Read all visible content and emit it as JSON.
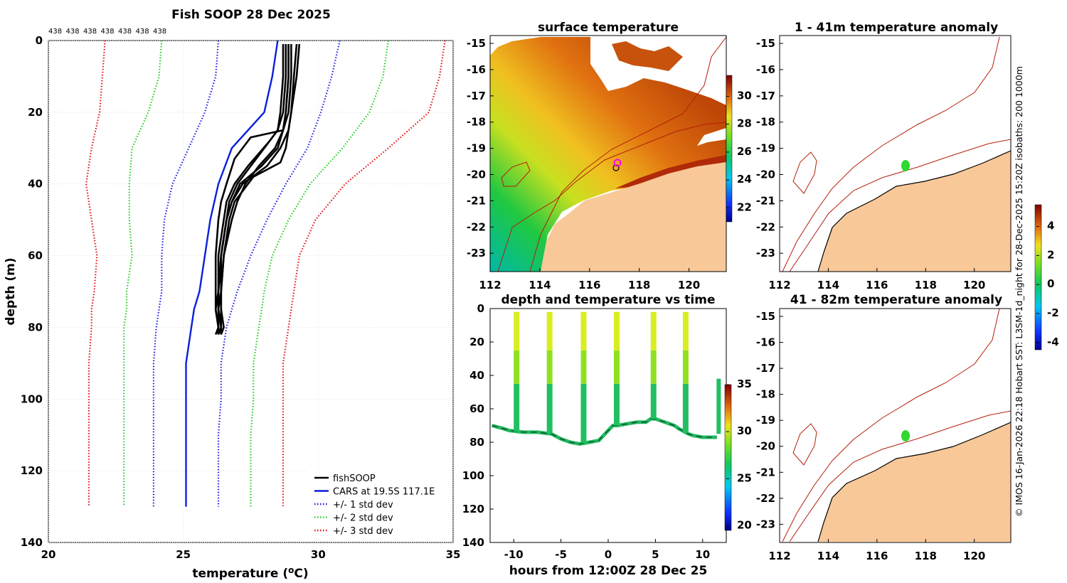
{
  "credit": "© IMOS 16-Jan-2026 22:18 Hobart SST: L3SM-1d_night for 28-Dec-2025 15:20Z isobaths: 200  1000m",
  "colors": {
    "fishSOOP": "#000000",
    "cars": "#0a1fdc",
    "std1": "#1a1ae6",
    "std2": "#22cc22",
    "std3": "#e01010",
    "land": "#f8c898",
    "isobath": "#b41e0a"
  },
  "chart_data": [
    {
      "id": "profile",
      "type": "line",
      "title": "Fish SOOP 28 Dec 2025",
      "xlabel": "temperature (°C)",
      "ylabel": "depth (m)",
      "xlim": [
        20,
        35
      ],
      "ylim": [
        140,
        0
      ],
      "xticks": [
        "20",
        "25",
        "30",
        "35"
      ],
      "yticks": [
        "0",
        "20",
        "40",
        "60",
        "80",
        "100",
        "120",
        "140"
      ],
      "top_counts": [
        "438",
        "438",
        "438",
        "438",
        "438",
        "438",
        "438"
      ],
      "legend": [
        "fishSOOP",
        "CARS at 19.5S 117.1E",
        "+/- 1 std dev",
        "+/- 2 std dev",
        "+/- 3 std dev"
      ],
      "depths": [
        0,
        10,
        20,
        30,
        40,
        50,
        60,
        70,
        75,
        80,
        90,
        100,
        110,
        120,
        130
      ],
      "cars": [
        28.5,
        28.3,
        28.0,
        26.8,
        26.3,
        26.0,
        25.8,
        25.6,
        25.4,
        25.3,
        25.1,
        25.1,
        25.1,
        25.1,
        25.1
      ],
      "std1_lo": [
        26.3,
        26.2,
        25.8,
        25.2,
        24.6,
        24.3,
        24.2,
        24.2,
        24.1,
        24.0,
        23.9,
        23.9,
        23.9,
        23.9,
        23.9
      ],
      "std1_hi": [
        30.8,
        30.5,
        30.1,
        29.6,
        28.8,
        28.1,
        27.5,
        27.0,
        26.8,
        26.6,
        26.4,
        26.4,
        26.3,
        26.3,
        26.3
      ],
      "std2_lo": [
        24.2,
        24.1,
        23.7,
        23.1,
        23.0,
        23.0,
        23.1,
        22.9,
        22.9,
        22.8,
        22.8,
        22.8,
        22.8,
        22.8,
        22.8
      ],
      "std2_hi": [
        32.6,
        32.4,
        31.9,
        30.9,
        29.7,
        28.9,
        28.3,
        28.0,
        27.9,
        27.8,
        27.6,
        27.6,
        27.5,
        27.5,
        27.5
      ],
      "std3_lo": [
        22.1,
        22.0,
        21.9,
        21.6,
        21.4,
        21.6,
        21.8,
        21.7,
        21.6,
        21.6,
        21.5,
        21.5,
        21.5,
        21.5,
        21.5
      ],
      "std3_hi": [
        34.7,
        34.5,
        34.1,
        32.6,
        31.0,
        29.9,
        29.3,
        29.1,
        29.0,
        28.9,
        28.7,
        28.7,
        28.7,
        28.7,
        28.7
      ],
      "fish_profiles": [
        {
          "depth": [
            1,
            10,
            20,
            25,
            30,
            35,
            40,
            45,
            50,
            60,
            70,
            75,
            80,
            82
          ],
          "temp": [
            28.9,
            28.9,
            28.8,
            28.7,
            28.4,
            27.8,
            27.3,
            27.0,
            26.8,
            26.5,
            26.4,
            26.3,
            26.4,
            26.4
          ]
        },
        {
          "depth": [
            1,
            10,
            20,
            25,
            30,
            35,
            40,
            45,
            50,
            60,
            70,
            75,
            80,
            82
          ],
          "temp": [
            29.2,
            29.1,
            29.0,
            28.9,
            28.6,
            28.1,
            27.2,
            26.8,
            26.6,
            26.4,
            26.3,
            26.3,
            26.4,
            26.3
          ]
        },
        {
          "depth": [
            1,
            10,
            20,
            25,
            28,
            35,
            40,
            45,
            50,
            60,
            70,
            75,
            80,
            82
          ],
          "temp": [
            28.7,
            28.7,
            28.6,
            28.5,
            28.2,
            27.4,
            26.9,
            26.6,
            26.5,
            26.3,
            26.3,
            26.2,
            26.3,
            26.2
          ]
        },
        {
          "depth": [
            1,
            10,
            20,
            25,
            30,
            34,
            38,
            45,
            50,
            60,
            70,
            75,
            80,
            82
          ],
          "temp": [
            29.3,
            29.2,
            29.0,
            28.9,
            28.8,
            28.6,
            27.6,
            26.9,
            26.7,
            26.5,
            26.4,
            26.4,
            26.5,
            26.4
          ]
        },
        {
          "depth": [
            1,
            10,
            20,
            25,
            30,
            35,
            40,
            45,
            50,
            60,
            70,
            75,
            80,
            82
          ],
          "temp": [
            28.8,
            28.8,
            28.7,
            28.5,
            28.0,
            27.5,
            27.0,
            26.7,
            26.6,
            26.4,
            26.3,
            26.3,
            26.3,
            26.3
          ]
        },
        {
          "depth": [
            1,
            10,
            20,
            25,
            27,
            33,
            40,
            45,
            50,
            60,
            70,
            75,
            80,
            82
          ],
          "temp": [
            29.0,
            29.0,
            28.9,
            28.7,
            27.5,
            26.9,
            26.6,
            26.4,
            26.3,
            26.2,
            26.2,
            26.2,
            26.3,
            26.3
          ]
        },
        {
          "depth": [
            1,
            10,
            20,
            25,
            30,
            35,
            40,
            45,
            50,
            60,
            70,
            75,
            80,
            82
          ],
          "temp": [
            28.9,
            28.9,
            28.8,
            28.7,
            28.5,
            27.9,
            27.1,
            26.8,
            26.6,
            26.4,
            26.4,
            26.4,
            26.4,
            26.4
          ]
        }
      ]
    },
    {
      "id": "sst_map",
      "type": "heatmap",
      "title": "surface temperature",
      "xlim": [
        112,
        121.5
      ],
      "ylim": [
        -23.7,
        -14.7
      ],
      "xticks": [
        "112",
        "114",
        "116",
        "118",
        "120"
      ],
      "yticks": [
        "-15",
        "-16",
        "-17",
        "-18",
        "-19",
        "-20",
        "-21",
        "-22",
        "-23"
      ],
      "colorbar": {
        "min": 21,
        "max": 31.5,
        "ticks": [
          "22",
          "24",
          "26",
          "28",
          "30"
        ]
      },
      "cast_location": [
        117.05,
        -19.6
      ]
    },
    {
      "id": "time_series",
      "type": "scatter",
      "title": "depth and temperature vs time",
      "xlabel": "hours from 12:00Z 28 Dec 25",
      "xlim": [
        -12.5,
        12.5
      ],
      "ylim": [
        140,
        0
      ],
      "xticks": [
        "-10",
        "-5",
        "0",
        "5",
        "10"
      ],
      "yticks": [
        "0",
        "20",
        "40",
        "60",
        "80",
        "100",
        "120",
        "140"
      ],
      "colorbar": {
        "min": 19.5,
        "max": 35,
        "ticks": [
          "20",
          "25",
          "30",
          "35"
        ]
      },
      "bottom_t": [
        -12.3,
        -11,
        -10.5,
        -9,
        -7.5,
        -6,
        -5,
        -4,
        -3,
        -2,
        -1,
        0,
        0.5,
        1,
        2,
        3,
        4,
        4.5,
        5,
        6,
        7,
        7.5,
        8.5,
        9,
        10,
        11,
        11.5
      ],
      "bottom_d": [
        70,
        72,
        73,
        74,
        74,
        75,
        78,
        80,
        81,
        80,
        79,
        73,
        70,
        70,
        69,
        68,
        68,
        66,
        66,
        68,
        70,
        72,
        75,
        76,
        77,
        77,
        77
      ],
      "casts": [
        -9.7,
        -6.2,
        -2.6,
        0.9,
        4.8,
        8.2
      ],
      "end_cast": 11.7
    },
    {
      "id": "anomaly_shallow",
      "type": "heatmap",
      "title": "1 - 41m temperature anomaly",
      "xlim": [
        112,
        121.5
      ],
      "ylim": [
        -23.7,
        -14.7
      ],
      "xticks": [
        "112",
        "114",
        "116",
        "118",
        "120"
      ],
      "yticks": [
        "-15",
        "-16",
        "-17",
        "-18",
        "-19",
        "-20",
        "-21",
        "-22",
        "-23"
      ],
      "anomaly_location": [
        117.2,
        -19.7
      ]
    },
    {
      "id": "anomaly_deep",
      "type": "heatmap",
      "title": "41 - 82m temperature anomaly",
      "xlim": [
        112,
        121.5
      ],
      "ylim": [
        -23.7,
        -14.7
      ],
      "xticks": [
        "112",
        "114",
        "116",
        "118",
        "120"
      ],
      "yticks": [
        "-15",
        "-16",
        "-17",
        "-18",
        "-19",
        "-20",
        "-21",
        "-22",
        "-23"
      ],
      "anomaly_location": [
        117.2,
        -19.7
      ],
      "colorbar": {
        "min": -4.5,
        "max": 5.5,
        "ticks": [
          "4",
          "2",
          "0",
          "-2",
          "-4"
        ]
      }
    }
  ]
}
